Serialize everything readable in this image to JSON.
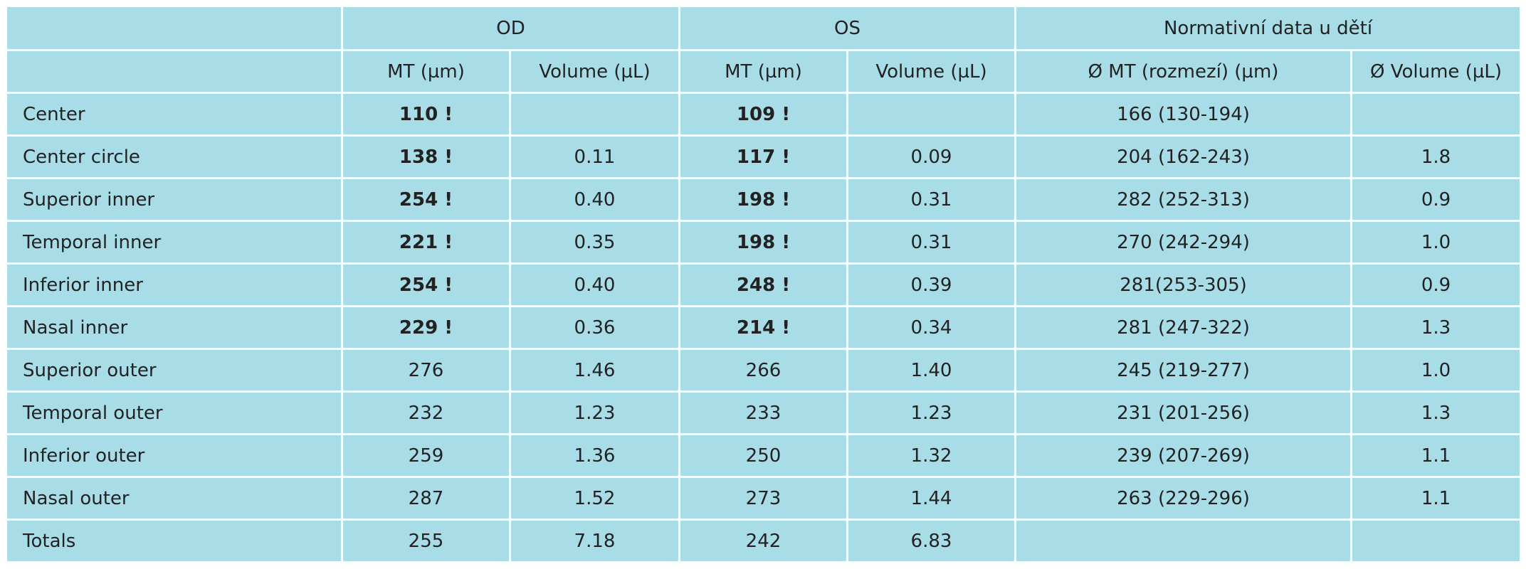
{
  "table": {
    "header": [
      "OD",
      "OS",
      "Normativní data u dětí"
    ],
    "subheader": [
      "MT (µm)",
      "Volume (µL)",
      "MT (µm)",
      "Volume (µL)",
      "Ø MT (rozmezí) (µm)",
      "Ø Volume (µL)"
    ],
    "rows": [
      {
        "cells": [
          "Center",
          "110 !",
          null,
          "109 !",
          null,
          "166 (130-194)",
          null
        ],
        "bold_columns": [
          1,
          3
        ]
      },
      {
        "cells": [
          "Center circle",
          "138 !",
          "0.11",
          "117 !",
          "0.09",
          "204 (162-243)",
          "1.8"
        ],
        "bold_columns": [
          1,
          3
        ]
      },
      {
        "cells": [
          "Superior inner",
          "254 !",
          "0.40",
          "198 !",
          "0.31",
          "282 (252-313)",
          "0.9"
        ],
        "bold_columns": [
          1,
          3
        ]
      },
      {
        "cells": [
          "Temporal inner",
          "221 !",
          "0.35",
          "198 !",
          "0.31",
          "270 (242-294)",
          "1.0"
        ],
        "bold_columns": [
          1,
          3
        ]
      },
      {
        "cells": [
          "Inferior inner",
          "254 !",
          "0.40",
          "248 !",
          "0.39",
          "281(253-305)",
          "0.9"
        ],
        "bold_columns": [
          1,
          3
        ]
      },
      {
        "cells": [
          "Nasal inner",
          "229 !",
          "0.36",
          "214 !",
          "0.34",
          "281 (247-322)",
          "1.3"
        ],
        "bold_columns": [
          1,
          3
        ]
      },
      {
        "cells": [
          "Superior outer",
          "276",
          "1.46",
          "266",
          "1.40",
          "245 (219-277)",
          "1.0"
        ],
        "bold_columns": []
      },
      {
        "cells": [
          "Temporal outer",
          "232",
          "1.23",
          "233",
          "1.23",
          "231 (201-256)",
          "1.3"
        ],
        "bold_columns": []
      },
      {
        "cells": [
          "Inferior outer",
          "259",
          "1.36",
          "250",
          "1.32",
          "239 (207-269)",
          "1.1"
        ],
        "bold_columns": []
      },
      {
        "cells": [
          "Nasal outer",
          "287",
          "1.52",
          "273",
          "1.44",
          "263 (229-296)",
          "1.1"
        ],
        "bold_columns": []
      },
      {
        "cells": [
          "Totals",
          "255",
          "7.18",
          "242",
          "6.83",
          null,
          null
        ],
        "bold_columns": []
      }
    ]
  }
}
